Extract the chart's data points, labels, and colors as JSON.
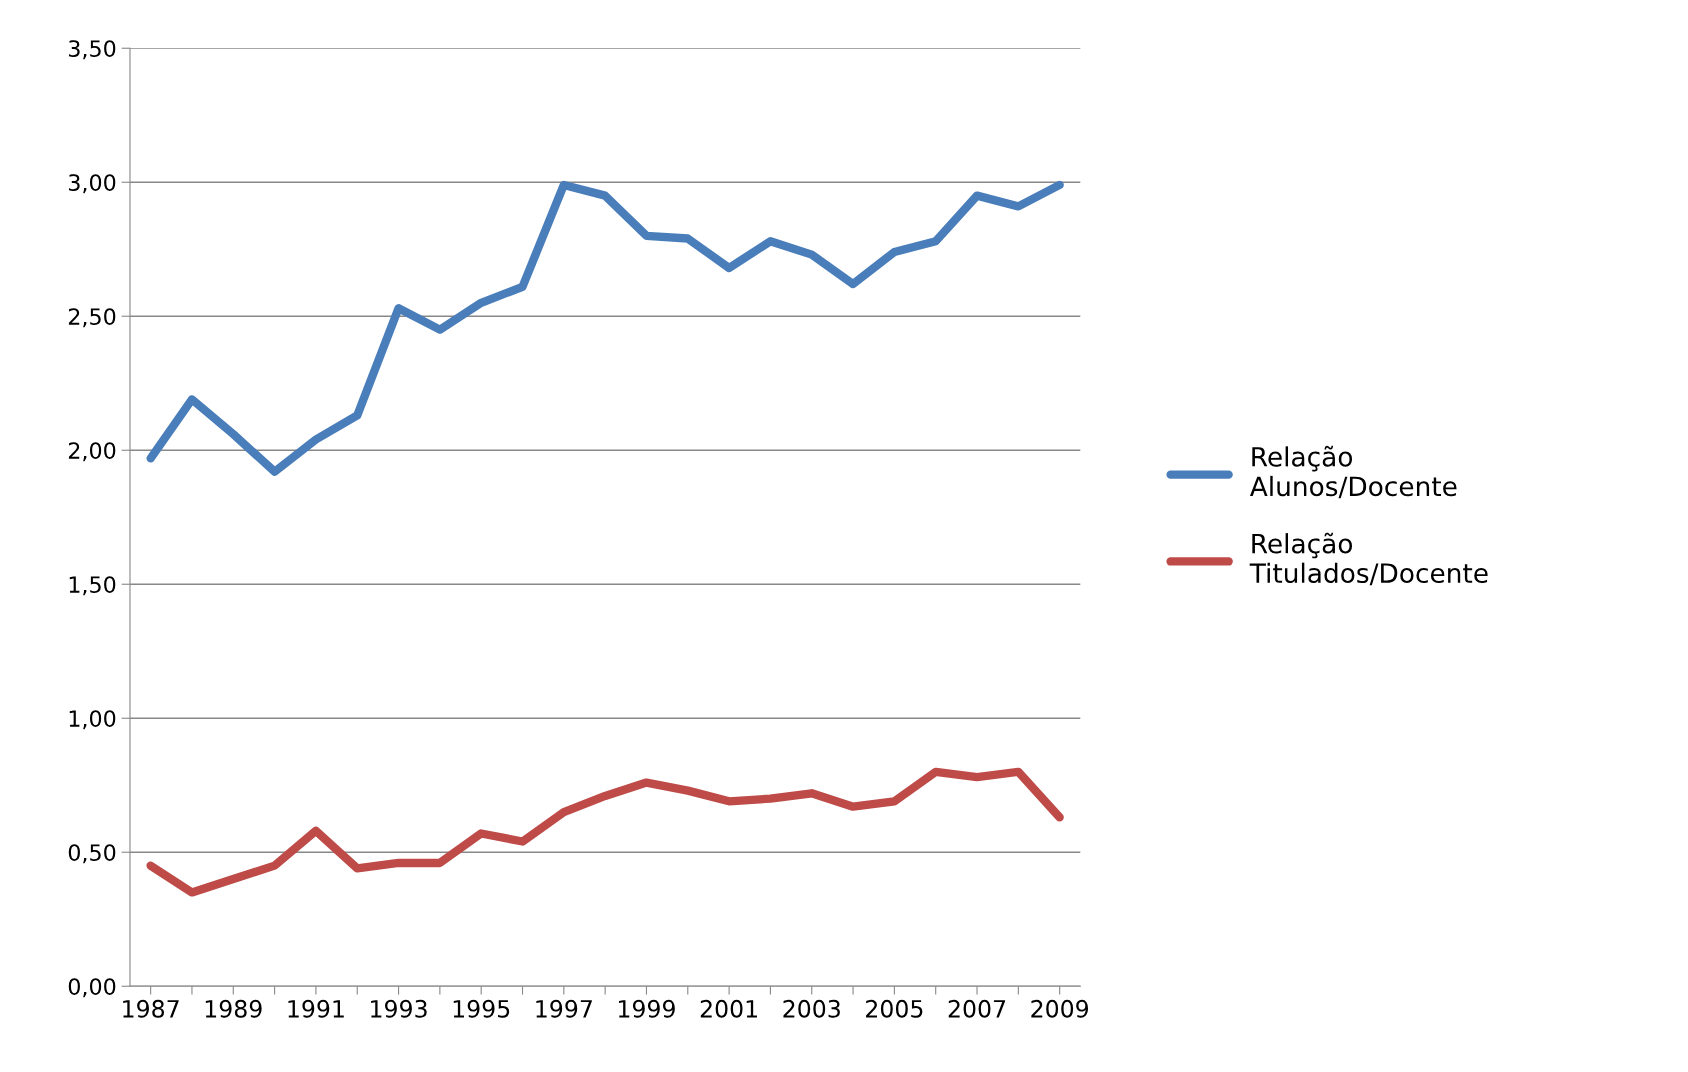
{
  "chart_data": {
    "type": "line",
    "categories": [
      "1987",
      null,
      "1989",
      null,
      "1991",
      null,
      "1993",
      null,
      "1995",
      null,
      "1997",
      null,
      "1999",
      null,
      "2001",
      null,
      "2003",
      null,
      "2005",
      null,
      "2007",
      null,
      "2009"
    ],
    "series": [
      {
        "name": "Relação\nAlunos/Docente",
        "color": "#4a7ebb",
        "values": [
          1.97,
          2.19,
          2.06,
          1.92,
          2.04,
          2.13,
          2.53,
          2.45,
          2.55,
          2.61,
          2.99,
          2.95,
          2.8,
          2.79,
          2.68,
          2.78,
          2.73,
          2.62,
          2.74,
          2.78,
          2.95,
          2.91,
          2.99
        ]
      },
      {
        "name": "Relação\nTitulados/Docente",
        "color": "#be4b48",
        "values": [
          0.45,
          0.35,
          0.4,
          0.45,
          0.58,
          0.44,
          0.46,
          0.46,
          0.57,
          0.54,
          0.65,
          0.71,
          0.76,
          0.73,
          0.69,
          0.7,
          0.72,
          0.67,
          0.69,
          0.8,
          0.78,
          0.8,
          0.63
        ]
      }
    ],
    "ylim": [
      0,
      3.5
    ],
    "yticks": [
      {
        "value": 0,
        "label": "0,00"
      },
      {
        "value": 0.5,
        "label": "0,50"
      },
      {
        "value": 1,
        "label": "1,00"
      },
      {
        "value": 1.5,
        "label": "1,50"
      },
      {
        "value": 2,
        "label": "2,00"
      },
      {
        "value": 2.5,
        "label": "2,50"
      },
      {
        "value": 3,
        "label": "3,00"
      },
      {
        "value": 3.5,
        "label": "3,50"
      }
    ],
    "grid": "y",
    "legend": "right",
    "marker": "none",
    "line_style": "solid"
  }
}
